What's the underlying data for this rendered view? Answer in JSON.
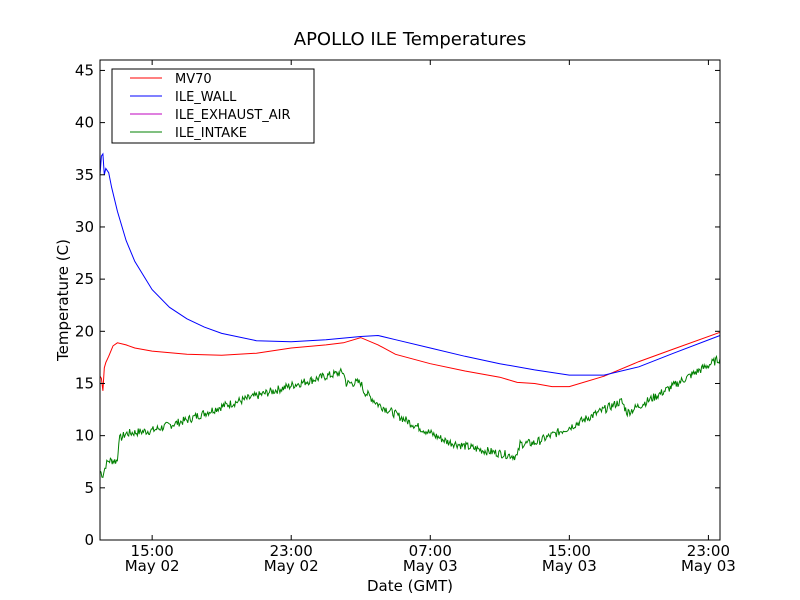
{
  "chart_data": {
    "type": "line",
    "title": "APOLLO ILE Temperatures",
    "xlabel": "Date (GMT)",
    "ylabel": "Temperature (C)",
    "ylim": [
      0,
      46
    ],
    "xlim": [
      "2011-05-02 12:00",
      "2011-05-03 23:40"
    ],
    "yticks": [
      0,
      5,
      10,
      15,
      20,
      25,
      30,
      35,
      40,
      45
    ],
    "xticks": [
      {
        "at": "2011-05-02 15:00",
        "time": "15:00",
        "date": "May 02"
      },
      {
        "at": "2011-05-02 23:00",
        "time": "23:00",
        "date": "May 02"
      },
      {
        "at": "2011-05-03 07:00",
        "time": "07:00",
        "date": "May 03"
      },
      {
        "at": "2011-05-03 15:00",
        "time": "15:00",
        "date": "May 03"
      },
      {
        "at": "2011-05-03 23:00",
        "time": "23:00",
        "date": "May 03"
      }
    ],
    "grid": false,
    "legend_position": "top-left",
    "series": [
      {
        "name": "MV70",
        "color": "#ff0000",
        "x": [
          "2011-05-02 12:00",
          "2011-05-02 12:05",
          "2011-05-02 12:10",
          "2011-05-02 12:15",
          "2011-05-02 12:20",
          "2011-05-02 12:30",
          "2011-05-02 12:45",
          "2011-05-02 13:00",
          "2011-05-02 13:30",
          "2011-05-02 14:00",
          "2011-05-02 15:00",
          "2011-05-02 17:00",
          "2011-05-02 19:00",
          "2011-05-02 21:00",
          "2011-05-02 23:00",
          "2011-05-03 01:00",
          "2011-05-03 02:00",
          "2011-05-03 03:00",
          "2011-05-03 04:00",
          "2011-05-03 05:00",
          "2011-05-03 07:00",
          "2011-05-03 09:00",
          "2011-05-03 11:00",
          "2011-05-03 12:00",
          "2011-05-03 13:00",
          "2011-05-03 14:00",
          "2011-05-03 15:00",
          "2011-05-03 17:00",
          "2011-05-03 19:00",
          "2011-05-03 21:00",
          "2011-05-03 23:40"
        ],
        "y": [
          15.7,
          15.5,
          14.3,
          16.5,
          17.0,
          17.6,
          18.6,
          18.9,
          18.7,
          18.4,
          18.1,
          17.8,
          17.7,
          17.9,
          18.4,
          18.7,
          18.9,
          19.4,
          18.7,
          17.8,
          16.9,
          16.2,
          15.6,
          15.1,
          15.0,
          14.7,
          14.7,
          15.7,
          17.1,
          18.3,
          19.9
        ]
      },
      {
        "name": "ILE_WALL",
        "color": "#0000ff",
        "x": [
          "2011-05-02 12:00",
          "2011-05-02 12:05",
          "2011-05-02 12:10",
          "2011-05-02 12:15",
          "2011-05-02 12:20",
          "2011-05-02 12:30",
          "2011-05-02 12:40",
          "2011-05-02 13:00",
          "2011-05-02 13:30",
          "2011-05-02 14:00",
          "2011-05-02 15:00",
          "2011-05-02 16:00",
          "2011-05-02 17:00",
          "2011-05-02 18:00",
          "2011-05-02 19:00",
          "2011-05-02 21:00",
          "2011-05-02 23:00",
          "2011-05-03 01:00",
          "2011-05-03 03:00",
          "2011-05-03 04:00",
          "2011-05-03 05:00",
          "2011-05-03 07:00",
          "2011-05-03 09:00",
          "2011-05-03 11:00",
          "2011-05-03 13:00",
          "2011-05-03 15:00",
          "2011-05-03 17:00",
          "2011-05-03 19:00",
          "2011-05-03 21:00",
          "2011-05-03 23:40"
        ],
        "y": [
          35.0,
          36.8,
          37.0,
          35.0,
          35.6,
          35.2,
          33.8,
          31.5,
          28.7,
          26.7,
          24.0,
          22.3,
          21.2,
          20.4,
          19.8,
          19.1,
          19.0,
          19.2,
          19.5,
          19.6,
          19.2,
          18.4,
          17.6,
          16.9,
          16.3,
          15.8,
          15.8,
          16.6,
          17.9,
          19.6
        ]
      },
      {
        "name": "ILE_EXHAUST_AIR",
        "color": "#bf00bf",
        "x": [],
        "y": []
      },
      {
        "name": "ILE_INTAKE",
        "color": "#008000",
        "x": [
          "2011-05-02 12:00",
          "2011-05-02 12:10",
          "2011-05-02 12:20",
          "2011-05-02 12:30",
          "2011-05-02 13:00",
          "2011-05-02 13:05",
          "2011-05-02 13:30",
          "2011-05-02 15:00",
          "2011-05-02 17:00",
          "2011-05-02 19:00",
          "2011-05-02 21:00",
          "2011-05-02 23:00",
          "2011-05-03 01:00",
          "2011-05-03 02:00",
          "2011-05-03 02:10",
          "2011-05-03 03:00",
          "2011-05-03 03:10",
          "2011-05-03 04:00",
          "2011-05-03 06:00",
          "2011-05-03 08:00",
          "2011-05-03 10:00",
          "2011-05-03 12:00",
          "2011-05-03 12:10",
          "2011-05-03 13:00",
          "2011-05-03 15:00",
          "2011-05-03 17:00",
          "2011-05-03 18:00",
          "2011-05-03 18:20",
          "2011-05-03 20:00",
          "2011-05-03 22:00",
          "2011-05-03 23:40"
        ],
        "y": [
          6.6,
          6.2,
          7.2,
          7.6,
          7.6,
          9.6,
          10.2,
          10.5,
          11.5,
          12.8,
          13.8,
          14.8,
          15.7,
          16.1,
          15.0,
          15.1,
          14.3,
          13.0,
          11.1,
          9.4,
          8.6,
          8.0,
          9.2,
          9.3,
          10.8,
          12.5,
          13.3,
          12.2,
          13.8,
          15.8,
          17.4
        ]
      }
    ]
  }
}
